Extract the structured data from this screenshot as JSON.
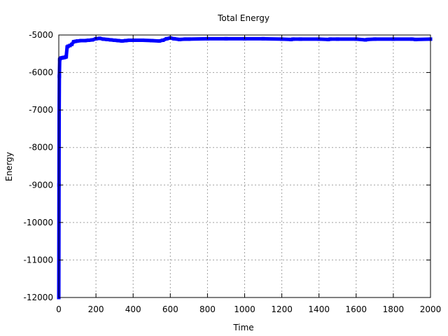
{
  "chart_data": {
    "type": "line",
    "title": "Total Energy",
    "xlabel": "Time",
    "ylabel": "Energy",
    "xlim": [
      0,
      2000
    ],
    "ylim": [
      -12000,
      -5000
    ],
    "xticks": [
      0,
      200,
      400,
      600,
      800,
      1000,
      1200,
      1400,
      1600,
      1800,
      2000
    ],
    "yticks": [
      -5000,
      -6000,
      -7000,
      -8000,
      -9000,
      -10000,
      -11000,
      -12000
    ],
    "xtick_labels": [
      "0",
      "200",
      "400",
      "600",
      "800",
      "1000",
      "1200",
      "1400",
      "1600",
      "1800",
      "2000"
    ],
    "ytick_labels": [
      "-5000",
      "-6000",
      "-7000",
      "-8000",
      "-9000",
      "-10000",
      "-11000",
      "-12000"
    ],
    "grid": true,
    "legend": "none",
    "series": [
      {
        "color": "#0000ff",
        "x": [
          0,
          1,
          2,
          3,
          5,
          10,
          15,
          20,
          25,
          30,
          35,
          40,
          45,
          50,
          60,
          70,
          80,
          90,
          100,
          120,
          140,
          160,
          180,
          200,
          220,
          240,
          260,
          280,
          300,
          320,
          340,
          360,
          380,
          400,
          450,
          500,
          540,
          560,
          580,
          600,
          620,
          650,
          680,
          700,
          800,
          900,
          1000,
          1100,
          1200,
          1250,
          1260,
          1300,
          1400,
          1450,
          1460,
          1500,
          1600,
          1650,
          1660,
          1700,
          1800,
          1900,
          1920,
          2000
        ],
        "y": [
          -12000,
          -9000,
          -7200,
          -6100,
          -5650,
          -5620,
          -5610,
          -5610,
          -5600,
          -5600,
          -5590,
          -5580,
          -5320,
          -5300,
          -5280,
          -5250,
          -5180,
          -5170,
          -5160,
          -5150,
          -5150,
          -5140,
          -5130,
          -5100,
          -5090,
          -5110,
          -5120,
          -5130,
          -5140,
          -5150,
          -5160,
          -5150,
          -5140,
          -5140,
          -5140,
          -5150,
          -5160,
          -5140,
          -5100,
          -5080,
          -5100,
          -5120,
          -5110,
          -5110,
          -5100,
          -5100,
          -5100,
          -5100,
          -5110,
          -5120,
          -5110,
          -5110,
          -5110,
          -5120,
          -5110,
          -5110,
          -5110,
          -5130,
          -5120,
          -5110,
          -5110,
          -5110,
          -5120,
          -5110
        ]
      }
    ]
  }
}
